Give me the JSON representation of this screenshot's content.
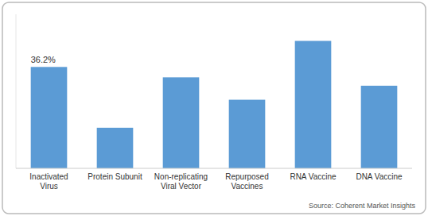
{
  "chart_data": {
    "type": "bar",
    "categories": [
      "Inactivated\nVirus",
      "Protein Subunit",
      "Non-replicating\nViral Vector",
      "Repurposed\nVaccines",
      "RNA Vaccine",
      "DNA Vaccine"
    ],
    "values": [
      36.2,
      14.5,
      32.5,
      24.5,
      45.5,
      29.5
    ],
    "value_labels": [
      "36.2%",
      null,
      null,
      null,
      null,
      null
    ],
    "color": "#5B9BD5",
    "ylim": [
      0,
      55
    ],
    "tick_labels": "x",
    "grid": false,
    "source": "Source: Coherent Market Insights"
  }
}
